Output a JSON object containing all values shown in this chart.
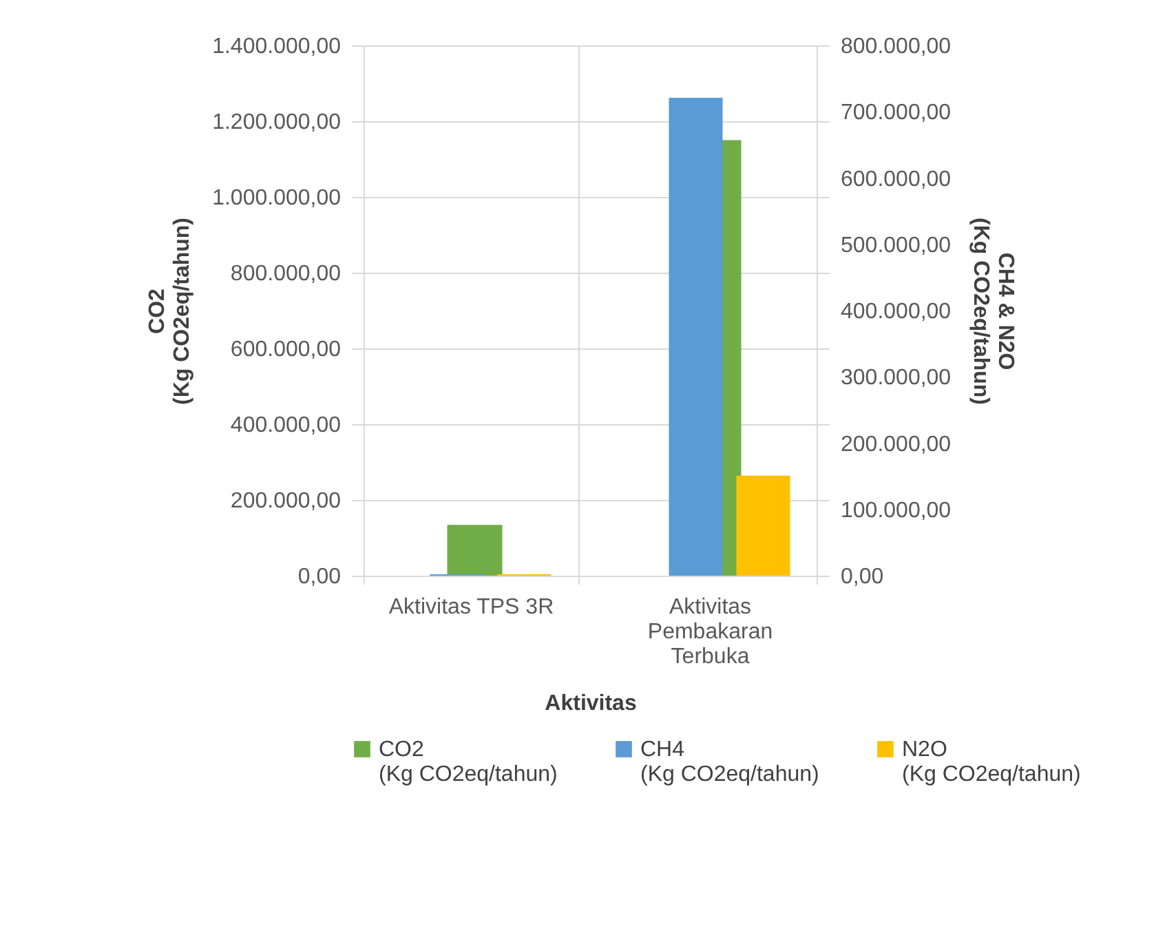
{
  "chart_data": {
    "type": "bar",
    "categories": [
      "Aktivitas TPS 3R",
      "Aktivitas Pembakaran Terbuka"
    ],
    "xlabel": "Aktivitas",
    "ylabel": "CO2 (Kg CO2eq/tahun)",
    "y2label": "CH4 & N2O (Kg CO2eq/tahun)",
    "series": [
      {
        "name": "CO2 (Kg CO2eq/tahun)",
        "color": "#70ad47",
        "values": [
          134000,
          1150000
        ]
      },
      {
        "name": "CH4 (Kg CO2eq/tahun)",
        "color": "#5b9bd5",
        "axis": "y2",
        "values": [
          2000,
          721000
        ]
      },
      {
        "name": "N2O (Kg CO2eq/tahun)",
        "color": "#ffc000",
        "axis": "y2",
        "values": [
          2000,
          151000
        ]
      }
    ],
    "ylim": [
      0,
      1400000
    ],
    "yticks": [
      {
        "value": 0,
        "label": "0,00"
      },
      {
        "value": 200000,
        "label": "200.000,00"
      },
      {
        "value": 400000,
        "label": "400.000,00"
      },
      {
        "value": 600000,
        "label": "600.000,00"
      },
      {
        "value": 800000,
        "label": "800.000,00"
      },
      {
        "value": 1000000,
        "label": "1.000.000,00"
      },
      {
        "value": 1200000,
        "label": "1.200.000,00"
      },
      {
        "value": 1400000,
        "label": "1.400.000,00"
      }
    ],
    "y2lim": [
      0,
      800000
    ],
    "y2ticks": [
      {
        "value": 0,
        "label": "0,00"
      },
      {
        "value": 100000,
        "label": "100.000,00"
      },
      {
        "value": 200000,
        "label": "200.000,00"
      },
      {
        "value": 300000,
        "label": "300.000,00"
      },
      {
        "value": 400000,
        "label": "400.000,00"
      },
      {
        "value": 500000,
        "label": "500.000,00"
      },
      {
        "value": 600000,
        "label": "600.000,00"
      },
      {
        "value": 700000,
        "label": "700.000,00"
      },
      {
        "value": 800000,
        "label": "800.000,00"
      }
    ],
    "grid": true,
    "legend": "bottom"
  }
}
